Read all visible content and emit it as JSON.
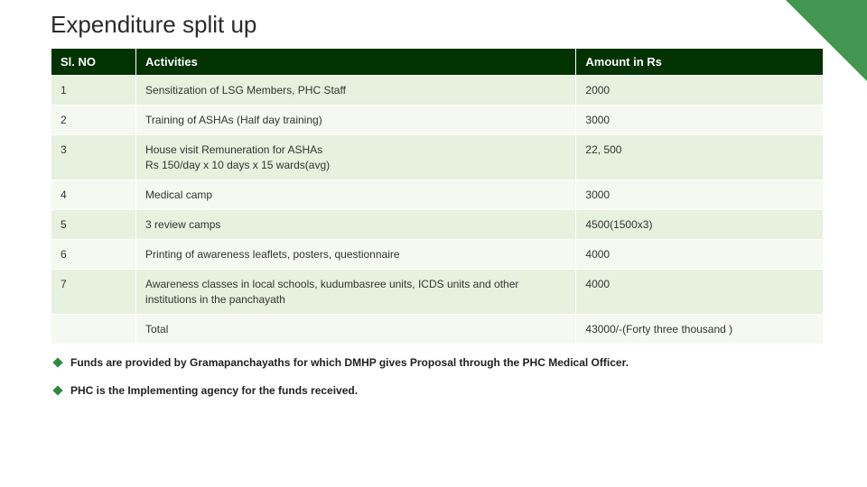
{
  "title": "Expenditure split up",
  "table": {
    "headers": {
      "sl": "Sl. NO",
      "act": "Activities",
      "amt": "Amount in Rs"
    },
    "rows": [
      {
        "sl": "1",
        "act": "Sensitization of LSG Members, PHC Staff",
        "amt": "2000"
      },
      {
        "sl": "2",
        "act": "Training of ASHAs (Half day training)",
        "amt": "3000"
      },
      {
        "sl": "3",
        "act": "House visit Remuneration for ASHAs\nRs 150/day x 10 days x 15 wards(avg)",
        "amt": "22, 500"
      },
      {
        "sl": "4",
        "act": "Medical camp",
        "amt": "3000"
      },
      {
        "sl": "5",
        "act": "3 review camps",
        "amt": "4500(1500x3)"
      },
      {
        "sl": "6",
        "act": "Printing of awareness leaflets, posters, questionnaire",
        "amt": "4000"
      },
      {
        "sl": "7",
        "act": "Awareness classes in local schools, kudumbasree units, ICDS units and other institutions in the panchayath",
        "amt": "4000"
      },
      {
        "sl": "",
        "act": "Total",
        "amt": "43000/-(Forty three thousand )"
      }
    ]
  },
  "bullets": [
    "Funds are provided by Gramapanchayaths for which DMHP gives Proposal through the PHC Medical Officer.",
    "PHC is the Implementing agency for the funds received."
  ],
  "style": {
    "header_bg": "#003300",
    "row_odd_bg": "#e8f0de",
    "row_even_bg": "#f5f9f1",
    "accent_color": "#2e8b3e",
    "title_fontsize": 26,
    "table_fontsize": 12
  }
}
